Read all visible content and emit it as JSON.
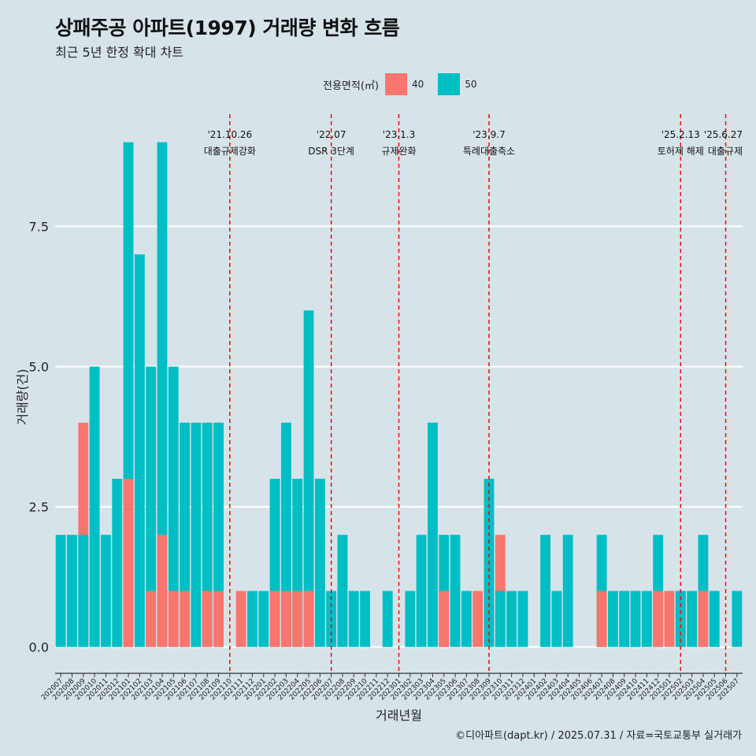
{
  "title": "상패주공 아파트(1997) 거래량 변화 흐름",
  "subtitle": "최근 5년 한정 확대 차트",
  "legend": {
    "title": "전용면적(㎡)",
    "items": [
      {
        "label": "40",
        "color": "#f8766d"
      },
      {
        "label": "50",
        "color": "#00bfc4"
      }
    ]
  },
  "caption": "©디아파트(dapt.kr) / 2025.07.31 / 자료=국토교통부 실거래가",
  "chart_data": {
    "type": "bar",
    "stacked": false,
    "xlabel": "거래년월",
    "ylabel": "거래량(건)",
    "ylim": [
      -0.3,
      9.5
    ],
    "yticks": [
      0.0,
      2.5,
      5.0,
      7.5
    ],
    "ytick_labels": [
      "0.0",
      "2.5",
      "5.0",
      "7.5"
    ],
    "categories": [
      "202007",
      "202008",
      "202009",
      "202010",
      "202011",
      "202012",
      "202101",
      "202102",
      "202103",
      "202104",
      "202105",
      "202106",
      "202107",
      "202108",
      "202109",
      "202110",
      "202111",
      "202112",
      "202201",
      "202202",
      "202203",
      "202204",
      "202205",
      "202206",
      "202207",
      "202208",
      "202209",
      "202210",
      "202211",
      "202212",
      "202301",
      "202302",
      "202303",
      "202304",
      "202305",
      "202306",
      "202307",
      "202308",
      "202309",
      "202310",
      "202311",
      "202312",
      "202401",
      "202402",
      "202403",
      "202404",
      "202405",
      "202406",
      "202407",
      "202408",
      "202409",
      "202410",
      "202411",
      "202412",
      "202501",
      "202502",
      "202503",
      "202504",
      "202505",
      "202506",
      "202507"
    ],
    "series": [
      {
        "name": "40",
        "color": "#f8766d",
        "values": [
          0,
          0,
          4,
          0,
          0,
          0,
          3,
          0,
          1,
          2,
          1,
          1,
          0,
          1,
          1,
          0,
          1,
          0,
          0,
          1,
          1,
          1,
          1,
          0,
          0,
          0,
          0,
          0,
          0,
          0,
          0,
          0,
          0,
          0,
          1,
          0,
          0,
          1,
          0,
          2,
          0,
          0,
          0,
          0,
          0,
          0,
          0,
          0,
          1,
          0,
          1,
          1,
          0,
          1,
          1,
          1,
          0,
          1,
          0,
          0,
          0
        ]
      },
      {
        "name": "50",
        "color": "#00bfc4",
        "values": [
          2,
          2,
          2,
          5,
          2,
          3,
          9,
          7,
          5,
          9,
          5,
          4,
          4,
          4,
          4,
          0,
          0,
          1,
          1,
          3,
          4,
          3,
          6,
          3,
          1,
          2,
          1,
          1,
          0,
          1,
          0,
          1,
          2,
          4,
          2,
          2,
          1,
          0,
          3,
          1,
          1,
          1,
          0,
          2,
          1,
          2,
          0,
          0,
          2,
          1,
          1,
          1,
          1,
          2,
          0,
          1,
          1,
          2,
          1,
          0,
          1
        ]
      }
    ],
    "annotations": [
      {
        "x": "202110",
        "date": "'21.10.26",
        "text": "대출규제강화"
      },
      {
        "x": "202207",
        "date": "'22.07",
        "text": "DSR 3단계"
      },
      {
        "x": "202301",
        "date": "'23.1.3",
        "text": "규제완화"
      },
      {
        "x": "202309",
        "date": "'23.9.7",
        "text": "특례대출축소"
      },
      {
        "x": "202502",
        "date": "'25.2.13",
        "text": "토허제 해제"
      },
      {
        "x": "202506",
        "date": "'25.6.27",
        "text": "대출규제"
      }
    ],
    "vline_color": "#ff0000"
  }
}
